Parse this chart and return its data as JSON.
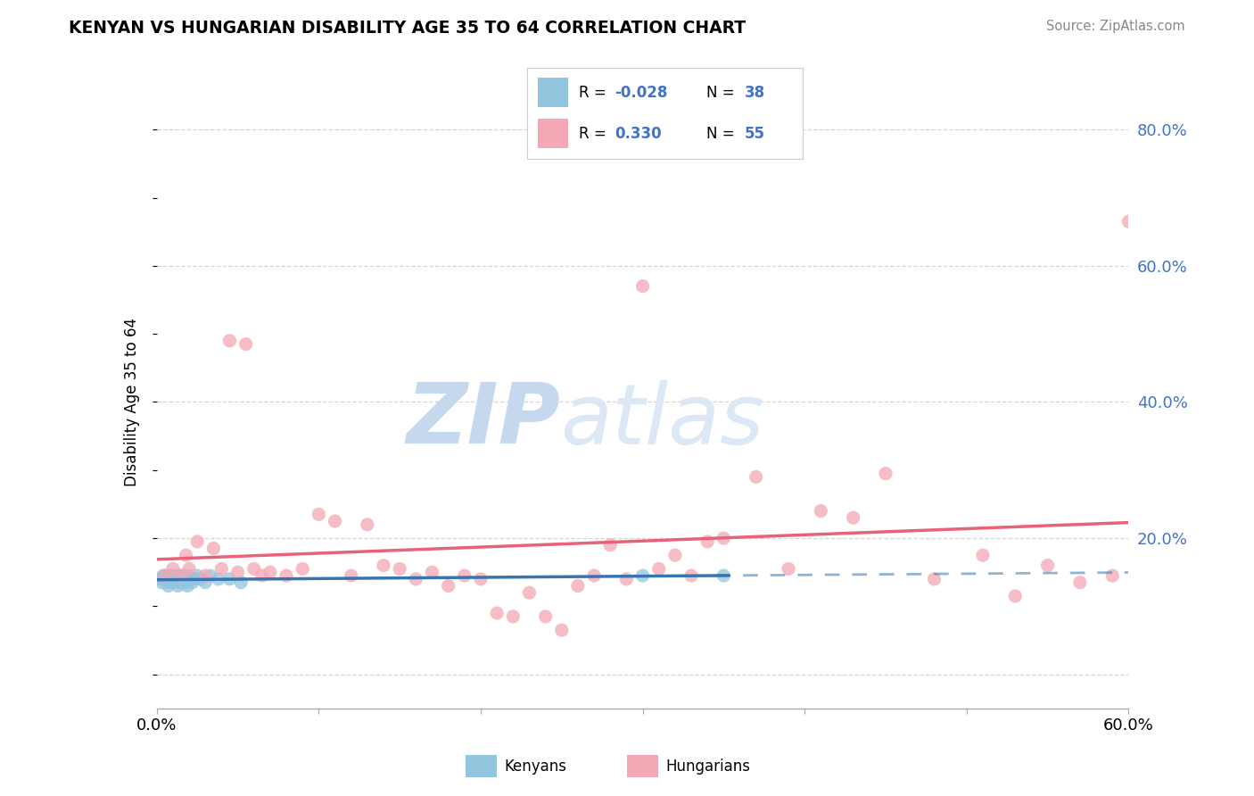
{
  "title": "KENYAN VS HUNGARIAN DISABILITY AGE 35 TO 64 CORRELATION CHART",
  "source_text": "Source: ZipAtlas.com",
  "ylabel": "Disability Age 35 to 64",
  "xlim": [
    0.0,
    0.6
  ],
  "ylim": [
    -0.05,
    0.85
  ],
  "kenyan_R": -0.028,
  "kenyan_N": 38,
  "hungarian_R": 0.33,
  "hungarian_N": 55,
  "kenyan_color": "#92c5de",
  "hungarian_color": "#f4a7b4",
  "kenyan_line_color": "#3875b0",
  "hungarian_line_color": "#e8637a",
  "watermark_zip": "ZIP",
  "watermark_atlas": "atlas",
  "watermark_color": "#dce8f5",
  "background_color": "#ffffff",
  "grid_color": "#cccccc",
  "kenyan_x": [
    0.002,
    0.003,
    0.004,
    0.005,
    0.005,
    0.006,
    0.007,
    0.007,
    0.008,
    0.008,
    0.009,
    0.009,
    0.01,
    0.01,
    0.011,
    0.011,
    0.012,
    0.013,
    0.013,
    0.014,
    0.015,
    0.016,
    0.017,
    0.018,
    0.019,
    0.02,
    0.021,
    0.022,
    0.023,
    0.025,
    0.027,
    0.03,
    0.033,
    0.038,
    0.045,
    0.052,
    0.3,
    0.35
  ],
  "kenyan_y": [
    0.14,
    0.135,
    0.145,
    0.14,
    0.145,
    0.135,
    0.14,
    0.13,
    0.145,
    0.14,
    0.135,
    0.145,
    0.14,
    0.135,
    0.14,
    0.145,
    0.14,
    0.135,
    0.13,
    0.145,
    0.135,
    0.14,
    0.145,
    0.135,
    0.13,
    0.145,
    0.14,
    0.135,
    0.14,
    0.145,
    0.14,
    0.135,
    0.145,
    0.14,
    0.14,
    0.135,
    0.145,
    0.145
  ],
  "hungarian_x": [
    0.005,
    0.01,
    0.015,
    0.018,
    0.02,
    0.025,
    0.03,
    0.035,
    0.04,
    0.045,
    0.05,
    0.055,
    0.06,
    0.065,
    0.07,
    0.08,
    0.09,
    0.1,
    0.11,
    0.12,
    0.13,
    0.14,
    0.15,
    0.16,
    0.17,
    0.18,
    0.19,
    0.2,
    0.21,
    0.22,
    0.23,
    0.24,
    0.25,
    0.26,
    0.27,
    0.28,
    0.29,
    0.3,
    0.31,
    0.32,
    0.33,
    0.34,
    0.35,
    0.37,
    0.39,
    0.41,
    0.43,
    0.45,
    0.48,
    0.51,
    0.53,
    0.55,
    0.57,
    0.59,
    0.6
  ],
  "hungarian_y": [
    0.145,
    0.155,
    0.145,
    0.175,
    0.155,
    0.195,
    0.145,
    0.185,
    0.155,
    0.49,
    0.15,
    0.485,
    0.155,
    0.145,
    0.15,
    0.145,
    0.155,
    0.235,
    0.225,
    0.145,
    0.22,
    0.16,
    0.155,
    0.14,
    0.15,
    0.13,
    0.145,
    0.14,
    0.09,
    0.085,
    0.12,
    0.085,
    0.065,
    0.13,
    0.145,
    0.19,
    0.14,
    0.57,
    0.155,
    0.175,
    0.145,
    0.195,
    0.2,
    0.29,
    0.155,
    0.24,
    0.23,
    0.295,
    0.14,
    0.175,
    0.115,
    0.16,
    0.135,
    0.145,
    0.665
  ]
}
